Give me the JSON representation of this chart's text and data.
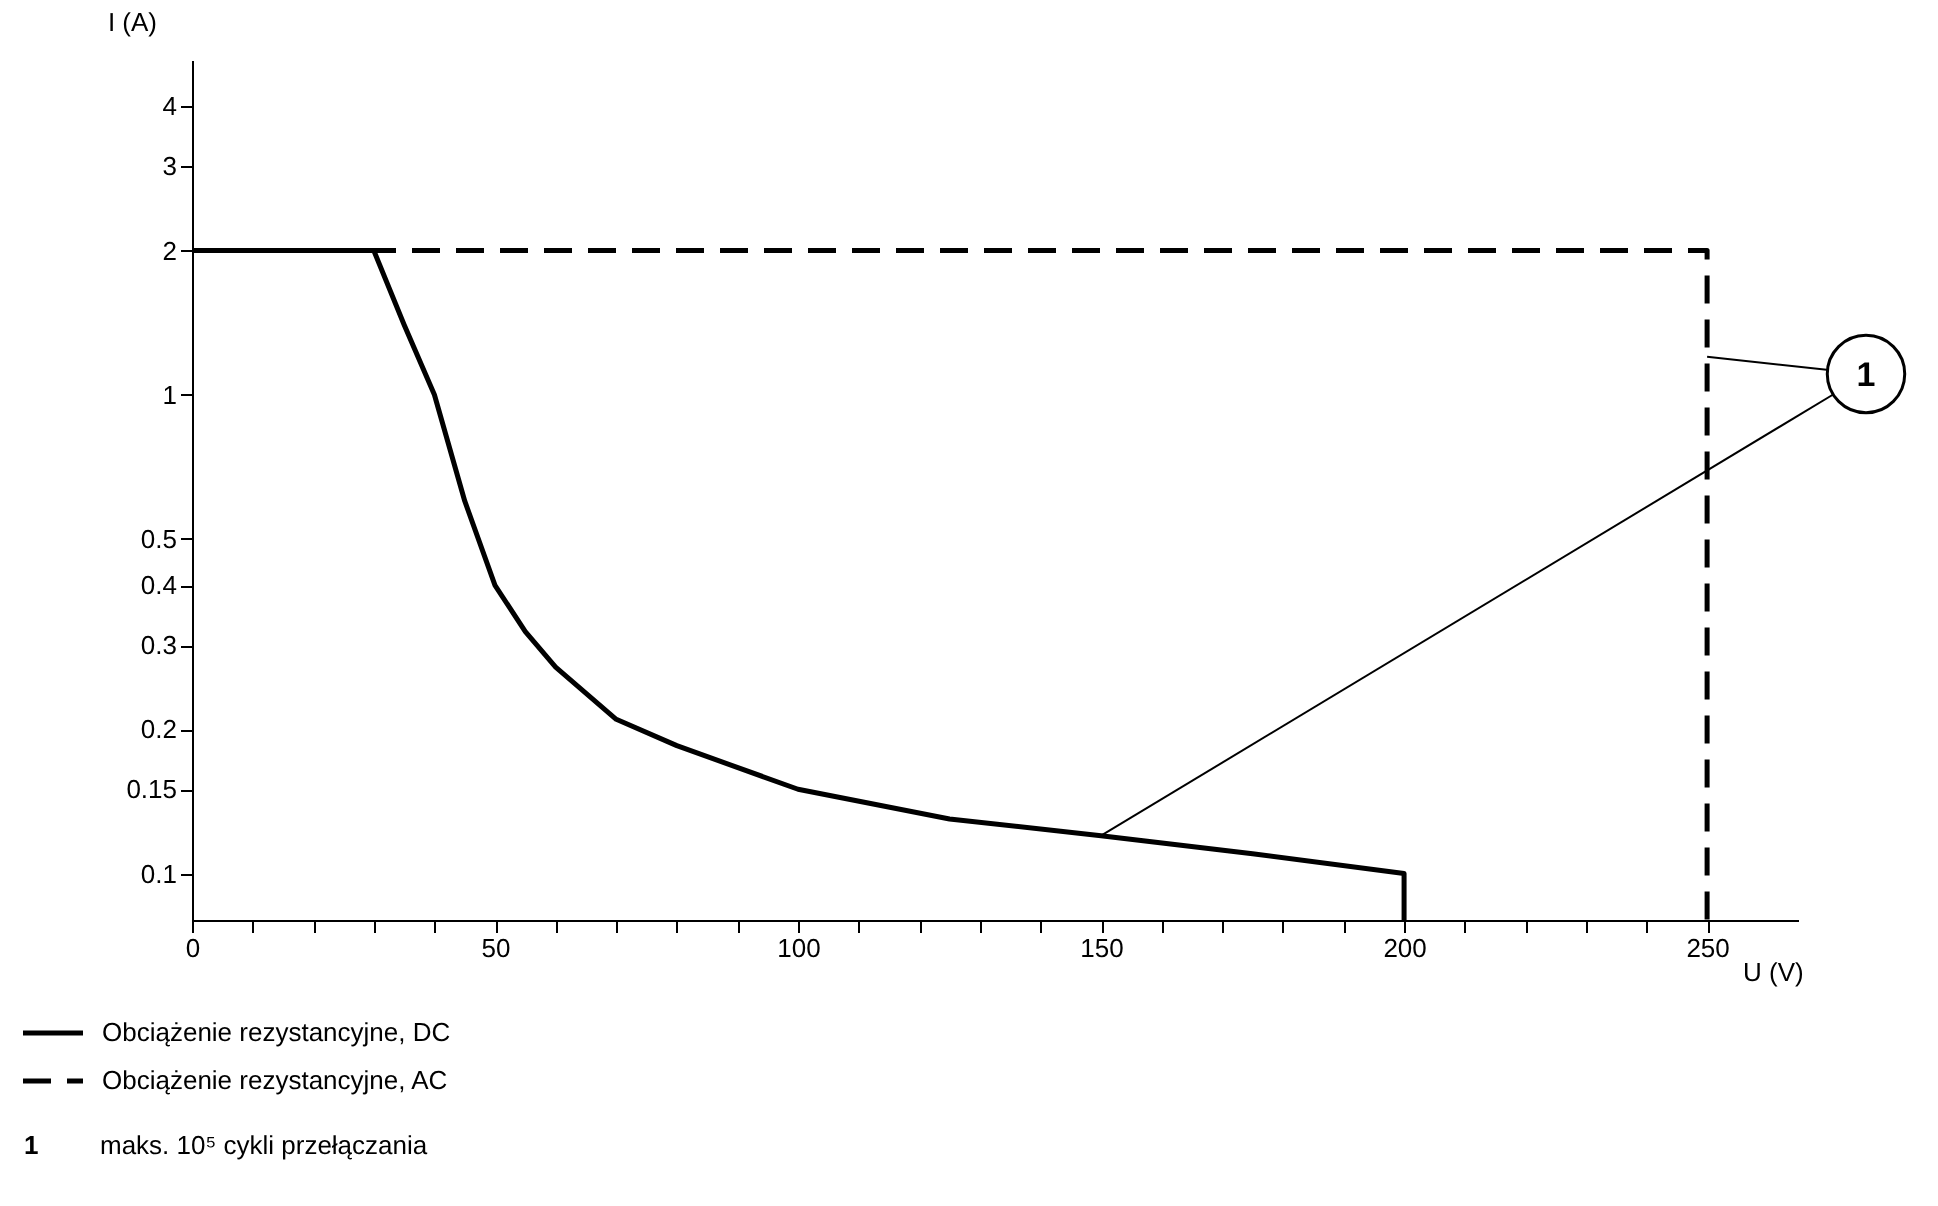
{
  "chart_data": {
    "type": "line",
    "xlabel": "U (V)",
    "ylabel": "I (A)",
    "xlim": [
      0,
      265
    ],
    "ylim": [
      0.08,
      5
    ],
    "log": "y",
    "xticks": [
      0,
      {
        "value": 10,
        "label": null
      },
      {
        "value": 20,
        "label": null
      },
      {
        "value": 30,
        "label": null
      },
      {
        "value": 40,
        "label": null
      },
      50,
      {
        "value": 60,
        "label": null
      },
      {
        "value": 70,
        "label": null
      },
      {
        "value": 80,
        "label": null
      },
      {
        "value": 90,
        "label": null
      },
      100,
      {
        "value": 110,
        "label": null
      },
      {
        "value": 120,
        "label": null
      },
      {
        "value": 130,
        "label": null
      },
      {
        "value": 140,
        "label": null
      },
      150,
      {
        "value": 160,
        "label": null
      },
      {
        "value": 170,
        "label": null
      },
      {
        "value": 180,
        "label": null
      },
      {
        "value": 190,
        "label": null
      },
      200,
      {
        "value": 210,
        "label": null
      },
      {
        "value": 220,
        "label": null
      },
      {
        "value": 230,
        "label": null
      },
      {
        "value": 240,
        "label": null
      },
      250
    ],
    "yticks": [
      0.1,
      0.15,
      0.2,
      0.3,
      0.4,
      0.5,
      1,
      2,
      3,
      4
    ],
    "grid": false,
    "legend": "bottom",
    "series": [
      {
        "name": "Obciążenie rezystancyjne, DC",
        "color": "#000000",
        "line_style": "solid",
        "x": [
          0,
          30,
          35,
          40,
          45,
          50,
          55,
          60,
          70,
          80,
          100,
          125,
          150,
          175,
          200,
          200
        ],
        "values": [
          2,
          2,
          1.4,
          1,
          0.6,
          0.4,
          0.32,
          0.27,
          0.21,
          0.185,
          0.15,
          0.13,
          0.12,
          0.11,
          0.1,
          0.08
        ]
      },
      {
        "name": "Obciążenie rezystancyjne, AC",
        "color": "#000000",
        "line_style": "dashed",
        "x": [
          0,
          250,
          250
        ],
        "values": [
          2,
          2,
          0.08
        ]
      }
    ],
    "annotations": [
      {
        "text": "1",
        "x": 250,
        "y": 1.2
      },
      "1",
      "maks. 10⁵ cykli przełączania"
    ]
  }
}
